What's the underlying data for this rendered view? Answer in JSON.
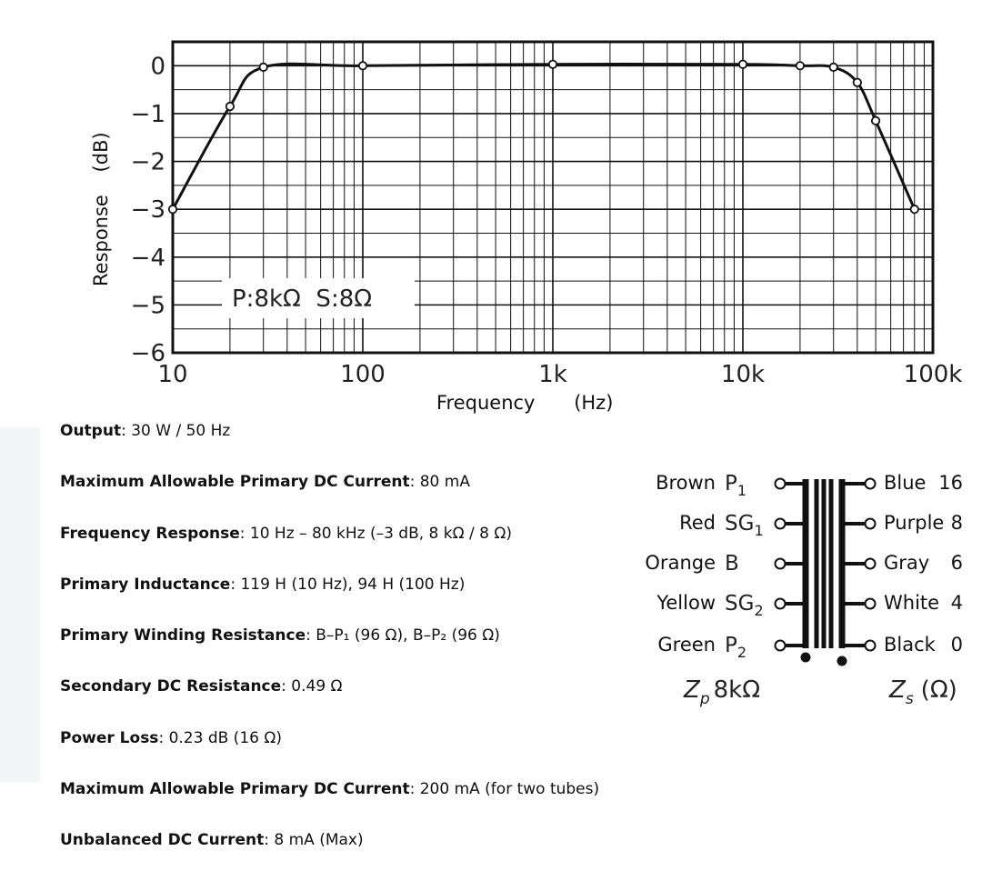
{
  "chart_data": {
    "type": "line",
    "xlabel": "Frequency",
    "xunit": "(Hz)",
    "ylabel": "Response",
    "yunit": "(dB)",
    "x_scale": "log",
    "xlim": [
      10,
      100000
    ],
    "ylim": [
      -6,
      0.5
    ],
    "xticks": [
      {
        "value": 10,
        "label": "10"
      },
      {
        "value": 100,
        "label": "100"
      },
      {
        "value": 1000,
        "label": "1k"
      },
      {
        "value": 10000,
        "label": "10k"
      },
      {
        "value": 100000,
        "label": "100k"
      }
    ],
    "yticks": [
      {
        "value": 0,
        "label": "0"
      },
      {
        "value": -1,
        "label": "−1"
      },
      {
        "value": -2,
        "label": "−2"
      },
      {
        "value": -3,
        "label": "−3"
      },
      {
        "value": -4,
        "label": "−4"
      },
      {
        "value": -5,
        "label": "−5"
      },
      {
        "value": -6,
        "label": "−6"
      }
    ],
    "grid": true,
    "annotation": "P:8kΩ  S:8Ω",
    "series": [
      {
        "x": [
          10,
          20,
          30,
          100,
          1000,
          10000,
          20000,
          30000,
          40000,
          50000,
          80000
        ],
        "y": [
          -3.0,
          -0.85,
          -0.03,
          0.0,
          0.03,
          0.03,
          0.0,
          -0.03,
          -0.35,
          -1.15,
          -3.0
        ]
      }
    ]
  },
  "specs": [
    {
      "label": "Output",
      "value": ": 30 W / 50 Hz"
    },
    {
      "label": "Maximum Allowable Primary DC Current",
      "value": ": 80 mA"
    },
    {
      "label": "Frequency Response",
      "value": ": 10 Hz – 80 kHz (–3 dB, 8 kΩ / 8 Ω)"
    },
    {
      "label": "Primary Inductance",
      "value": ": 119 H (10 Hz), 94 H (100 Hz)"
    },
    {
      "label": "Primary Winding Resistance",
      "value": ": B–P₁ (96 Ω), B–P₂ (96 Ω)"
    },
    {
      "label": "Secondary DC Resistance",
      "value": ": 0.49 Ω"
    },
    {
      "label": "Power Loss",
      "value": ": 0.23 dB (16 Ω)"
    },
    {
      "label": "Maximum Allowable Primary DC Current",
      "value": ": 200 mA (for two tubes)"
    },
    {
      "label": "Unbalanced DC Current",
      "value": ": 8 mA (Max)"
    }
  ],
  "transformer": {
    "primary": [
      {
        "color": "Brown",
        "pin": "P",
        "sub": "1"
      },
      {
        "color": "Red",
        "pin": "SG",
        "sub": "1"
      },
      {
        "color": "Orange",
        "pin": "B",
        "sub": ""
      },
      {
        "color": "Yellow",
        "pin": "SG",
        "sub": "2"
      },
      {
        "color": "Green",
        "pin": "P",
        "sub": "2"
      }
    ],
    "secondary": [
      {
        "color": "Blue",
        "tap": "16"
      },
      {
        "color": "Purple",
        "tap": "8"
      },
      {
        "color": "Gray",
        "tap": "6"
      },
      {
        "color": "White",
        "tap": "4"
      },
      {
        "color": "Black",
        "tap": "0"
      }
    ],
    "zp": {
      "sym": "Z",
      "sub": "p",
      "value": "8kΩ"
    },
    "zs": {
      "sym": "Z",
      "sub": "s",
      "value": "(Ω)"
    }
  }
}
